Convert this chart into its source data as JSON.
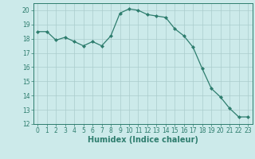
{
  "x": [
    0,
    1,
    2,
    3,
    4,
    5,
    6,
    7,
    8,
    9,
    10,
    11,
    12,
    13,
    14,
    15,
    16,
    17,
    18,
    19,
    20,
    21,
    22,
    23
  ],
  "y": [
    18.5,
    18.5,
    17.9,
    18.1,
    17.8,
    17.5,
    17.8,
    17.5,
    18.2,
    19.8,
    20.1,
    20.0,
    19.7,
    19.6,
    19.5,
    18.7,
    18.2,
    17.4,
    15.9,
    14.5,
    13.9,
    13.1,
    12.5,
    12.5
  ],
  "line_color": "#2e7d6e",
  "marker": "D",
  "marker_size": 2.0,
  "background_color": "#cceaea",
  "grid_color": "#aacccc",
  "axis_color": "#2e7d6e",
  "xlabel": "Humidex (Indice chaleur)",
  "xlim": [
    -0.5,
    23.5
  ],
  "ylim": [
    12,
    20.5
  ],
  "yticks": [
    12,
    13,
    14,
    15,
    16,
    17,
    18,
    19,
    20
  ],
  "xticks": [
    0,
    1,
    2,
    3,
    4,
    5,
    6,
    7,
    8,
    9,
    10,
    11,
    12,
    13,
    14,
    15,
    16,
    17,
    18,
    19,
    20,
    21,
    22,
    23
  ],
  "tick_fontsize": 5.5,
  "label_fontsize": 7.0,
  "linewidth": 0.9
}
